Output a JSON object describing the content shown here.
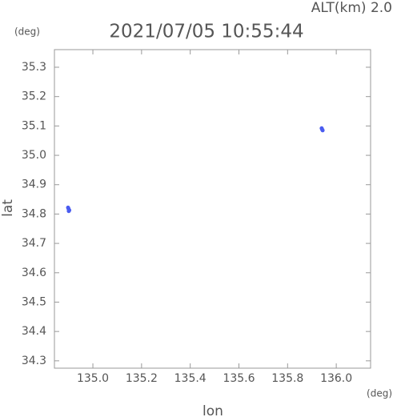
{
  "chart_data": {
    "type": "scatter",
    "title": "2021/07/05 10:55:44",
    "annotation": "ALT(km) 2.0",
    "y_unit": "(deg)",
    "x_unit": "(deg)",
    "x_label": "lon",
    "y_label": "lat",
    "color": "#4a5cf0",
    "x": [
      134.9,
      134.903,
      134.898,
      134.901,
      135.94,
      135.944,
      135.942
    ],
    "values": [
      34.818,
      34.813,
      34.822,
      34.81,
      35.092,
      35.085,
      35.088
    ],
    "xlim": [
      134.842,
      136.141
    ],
    "ylim": [
      34.275,
      35.36
    ],
    "xticks": [
      {
        "value": 135.0,
        "label": "135.0"
      },
      135.2,
      135.4,
      135.6,
      135.8,
      {
        "value": 136.0,
        "label": "136.0"
      }
    ],
    "yticks": [
      34.3,
      34.4,
      34.5,
      34.6,
      34.7,
      34.8,
      34.9,
      {
        "value": 35.0,
        "label": "35.0"
      },
      35.1,
      35.2,
      35.3
    ]
  }
}
